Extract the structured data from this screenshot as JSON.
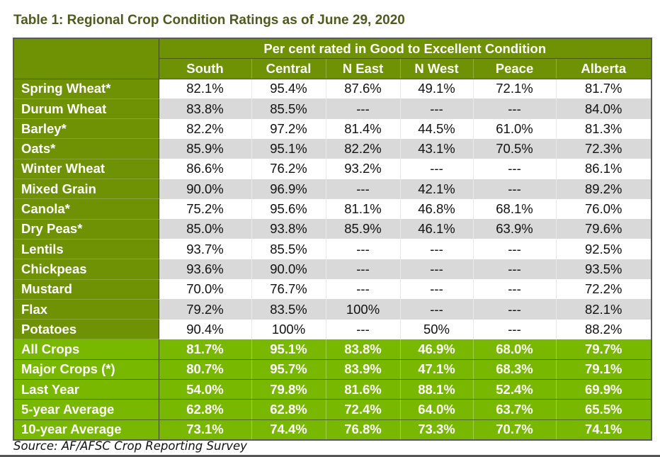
{
  "title": "Table 1: Regional Crop Condition Ratings as of June 29, 2020",
  "table": {
    "group_header": "Per cent rated in Good to Excellent Condition",
    "columns": [
      "South",
      "Central",
      "N East",
      "N West",
      "Peace",
      "Alberta"
    ],
    "rows": [
      {
        "label": "Spring Wheat*",
        "values": [
          "82.1%",
          "95.4%",
          "87.6%",
          "49.1%",
          "72.1%",
          "81.7%"
        ]
      },
      {
        "label": "Durum Wheat",
        "values": [
          "83.8%",
          "85.5%",
          "---",
          "---",
          "---",
          "84.0%"
        ]
      },
      {
        "label": "Barley*",
        "values": [
          "82.2%",
          "97.2%",
          "81.4%",
          "44.5%",
          "61.0%",
          "81.3%"
        ]
      },
      {
        "label": "Oats*",
        "values": [
          "85.9%",
          "95.1%",
          "82.2%",
          "43.1%",
          "70.5%",
          "72.3%"
        ]
      },
      {
        "label": "Winter Wheat",
        "values": [
          "86.6%",
          "76.2%",
          "93.2%",
          "---",
          "---",
          "86.1%"
        ]
      },
      {
        "label": "Mixed Grain",
        "values": [
          "90.0%",
          "96.9%",
          "---",
          "42.1%",
          "---",
          "89.2%"
        ]
      },
      {
        "label": "Canola*",
        "values": [
          "75.2%",
          "95.6%",
          "81.1%",
          "46.8%",
          "68.1%",
          "76.0%"
        ]
      },
      {
        "label": "Dry Peas*",
        "values": [
          "85.0%",
          "93.8%",
          "85.9%",
          "46.1%",
          "63.9%",
          "79.6%"
        ]
      },
      {
        "label": "Lentils",
        "values": [
          "93.7%",
          "85.5%",
          "---",
          "---",
          "---",
          "92.5%"
        ]
      },
      {
        "label": "Chickpeas",
        "values": [
          "93.6%",
          "90.0%",
          "---",
          "---",
          "---",
          "93.5%"
        ]
      },
      {
        "label": "Mustard",
        "values": [
          "70.0%",
          "76.7%",
          "---",
          "---",
          "---",
          "72.2%"
        ]
      },
      {
        "label": "Flax",
        "values": [
          "79.2%",
          "83.5%",
          "100%",
          "---",
          "---",
          "82.1%"
        ]
      },
      {
        "label": "Potatoes",
        "values": [
          "90.4%",
          "100%",
          "---",
          "50%",
          "---",
          "88.2%"
        ]
      }
    ],
    "summary_rows": [
      {
        "label": "All Crops",
        "values": [
          "81.7%",
          "95.1%",
          "83.8%",
          "46.9%",
          "68.0%",
          "79.7%"
        ]
      },
      {
        "label": "Major Crops (*)",
        "values": [
          "80.7%",
          "95.7%",
          "83.9%",
          "47.1%",
          "68.3%",
          "79.1%"
        ]
      },
      {
        "label": "Last Year",
        "values": [
          "54.0%",
          "79.8%",
          "81.6%",
          "88.1%",
          "52.4%",
          "69.9%"
        ]
      },
      {
        "label": "5-year Average",
        "values": [
          "62.8%",
          "62.8%",
          "72.4%",
          "64.0%",
          "63.7%",
          "65.5%"
        ]
      },
      {
        "label": "10-year Average",
        "values": [
          "73.1%",
          "74.4%",
          "76.8%",
          "73.3%",
          "70.7%",
          "74.1%"
        ]
      }
    ]
  },
  "source": "Source: AF/AFSC Crop Reporting Survey",
  "colors": {
    "header_green": "#6e9204",
    "summary_green": "#78b800",
    "title_text": "#4f5a1e",
    "stripe_gray": "#d9d9d9"
  }
}
